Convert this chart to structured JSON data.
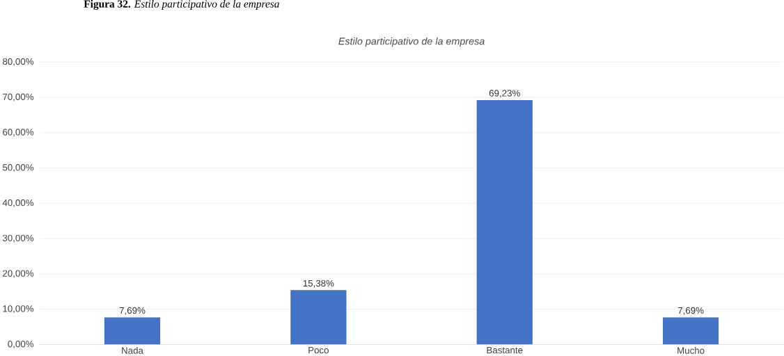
{
  "chart_data": {
    "type": "bar",
    "title": "Estilo participativo de la empresa",
    "annotations": [
      "**Figura 32.** *Estilo participativo de la empresa*"
    ],
    "categories": [
      "Nada",
      "Poco",
      "Bastante",
      "Mucho"
    ],
    "values": [
      7.69,
      15.38,
      69.23,
      7.69
    ],
    "value_labels": [
      "7,69%",
      "15,38%",
      "69,23%",
      "7,69%"
    ],
    "color": "#4472c4",
    "ylim": [
      0,
      80
    ],
    "yticks": [
      {
        "value": 0,
        "label": "0,00%"
      },
      {
        "value": 10,
        "label": "10,00%"
      },
      {
        "value": 20,
        "label": "20,00%"
      },
      {
        "value": 30,
        "label": "30,00%"
      },
      {
        "value": 40,
        "label": "40,00%"
      },
      {
        "value": 50,
        "label": "50,00%"
      },
      {
        "value": 60,
        "label": "60,00%"
      },
      {
        "value": 70,
        "label": "70,00%"
      },
      {
        "value": 80,
        "label": "80,00%"
      }
    ],
    "grid": "y"
  }
}
